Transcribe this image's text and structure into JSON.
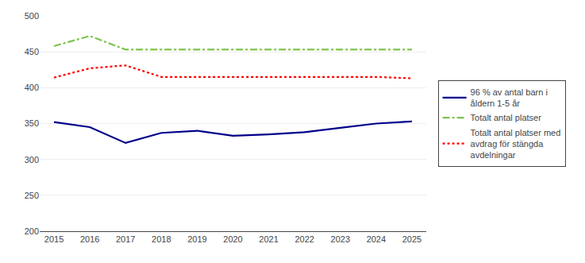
{
  "chart_data": {
    "type": "line",
    "x": [
      2015,
      2016,
      2017,
      2018,
      2019,
      2020,
      2021,
      2022,
      2023,
      2024,
      2025
    ],
    "series": [
      {
        "name": "96 % av antal barn i\nåldern 1-5 år",
        "color": "#00008B",
        "line_style": "solid",
        "values": [
          352,
          345,
          323,
          337,
          340,
          333,
          335,
          338,
          344,
          350,
          353
        ]
      },
      {
        "name": "Totalt antal platser",
        "color": "#7DC34A",
        "line_style": "dashdot",
        "values": [
          458,
          472,
          453,
          453,
          453,
          453,
          453,
          453,
          453,
          453,
          453
        ]
      },
      {
        "name": "Totalt antal platser med\navdrag för stängda\navdelningar",
        "color": "#FF0000",
        "line_style": "dotted",
        "values": [
          414,
          427,
          431,
          415,
          415,
          415,
          415,
          415,
          415,
          415,
          413
        ]
      }
    ],
    "xlim": [
      2014.6,
      2025.4
    ],
    "xticks": [
      2015,
      2016,
      2017,
      2018,
      2019,
      2020,
      2021,
      2022,
      2023,
      2024,
      2025
    ],
    "ylim": [
      200,
      500
    ],
    "yticks": [
      200,
      250,
      300,
      350,
      400,
      450,
      500
    ],
    "grid": true,
    "legend": "right"
  }
}
